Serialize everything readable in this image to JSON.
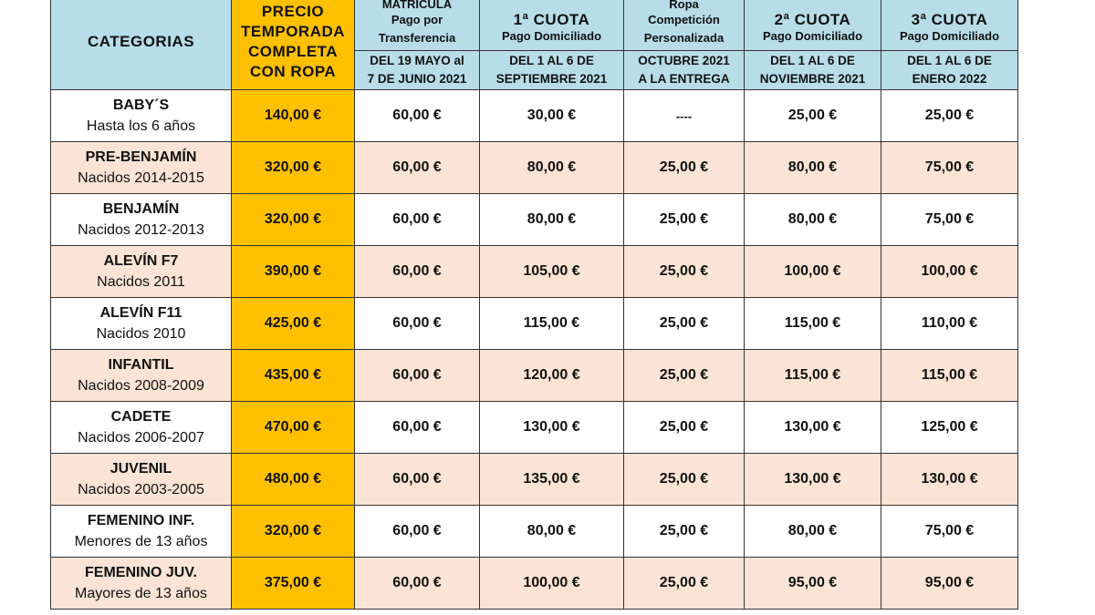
{
  "header": {
    "categorias": "CATEGORIAS",
    "precio": [
      "PRECIO",
      "TEMPORADA",
      "COMPLETA",
      "CON ROPA"
    ],
    "cols": [
      {
        "title": "MATRICULA",
        "sub": "Pago por Transferencia",
        "date1": "DEL 19 MAYO al",
        "date2": "7 DE JUNIO 2021"
      },
      {
        "title": "1ª CUOTA",
        "sub": "Pago Domiciliado",
        "date1": "DEL 1 AL 6 DE",
        "date2": "SEPTIEMBRE 2021"
      },
      {
        "title": "Ropa",
        "sub": "Competición Personalizada",
        "date1": "OCTUBRE 2021",
        "date2": "A LA ENTREGA"
      },
      {
        "title": "2ª CUOTA",
        "sub": "Pago Domiciliado",
        "date1": "DEL 1 AL 6 DE",
        "date2": "NOVIEMBRE 2021"
      },
      {
        "title": "3ª CUOTA",
        "sub": "Pago Domiciliado",
        "date1": "DEL 1 AL 6 DE",
        "date2": "ENERO 2022"
      }
    ]
  },
  "rows": [
    {
      "name": "BABY´S",
      "desc": "Hasta los 6 años",
      "vals": [
        "140,00 €",
        "60,00 €",
        "30,00 €",
        "----",
        "25,00 €",
        "25,00 €"
      ]
    },
    {
      "name": "PRE-BENJAMÍN",
      "desc": "Nacidos 2014-2015",
      "vals": [
        "320,00 €",
        "60,00 €",
        "80,00 €",
        "25,00 €",
        "80,00 €",
        "75,00 €"
      ]
    },
    {
      "name": "BENJAMÍN",
      "desc": "Nacidos 2012-2013",
      "vals": [
        "320,00 €",
        "60,00 €",
        "80,00 €",
        "25,00 €",
        "80,00 €",
        "75,00 €"
      ]
    },
    {
      "name": "ALEVÍN F7",
      "desc": "Nacidos 2011",
      "vals": [
        "390,00 €",
        "60,00 €",
        "105,00 €",
        "25,00 €",
        "100,00 €",
        "100,00 €"
      ]
    },
    {
      "name": "ALEVÍN F11",
      "desc": "Nacidos 2010",
      "vals": [
        "425,00 €",
        "60,00 €",
        "115,00 €",
        "25,00 €",
        "115,00 €",
        "110,00 €"
      ]
    },
    {
      "name": "INFANTIL",
      "desc": "Nacidos 2008-2009",
      "vals": [
        "435,00 €",
        "60,00 €",
        "120,00 €",
        "25,00 €",
        "115,00 €",
        "115,00 €"
      ]
    },
    {
      "name": "CADETE",
      "desc": "Nacidos 2006-2007",
      "vals": [
        "470,00 €",
        "60,00 €",
        "130,00 €",
        "25,00 €",
        "130,00 €",
        "125,00 €"
      ]
    },
    {
      "name": "JUVENIL",
      "desc": "Nacidos 2003-2005",
      "vals": [
        "480,00 €",
        "60,00 €",
        "135,00 €",
        "25,00 €",
        "130,00 €",
        "130,00 €"
      ]
    },
    {
      "name": "FEMENINO INF.",
      "desc": "Menores de 13 años",
      "vals": [
        "320,00 €",
        "60,00 €",
        "80,00 €",
        "25,00 €",
        "80,00 €",
        "75,00 €"
      ]
    },
    {
      "name": "FEMENINO JUV.",
      "desc": "Mayores de 13 años",
      "vals": [
        "375,00 €",
        "60,00 €",
        "100,00 €",
        "25,00 €",
        "95,00 €",
        "95,00 €"
      ]
    }
  ],
  "colors": {
    "header": "#b7dde8",
    "price": "#ffc000",
    "alt_row": "#fbe4d5"
  }
}
